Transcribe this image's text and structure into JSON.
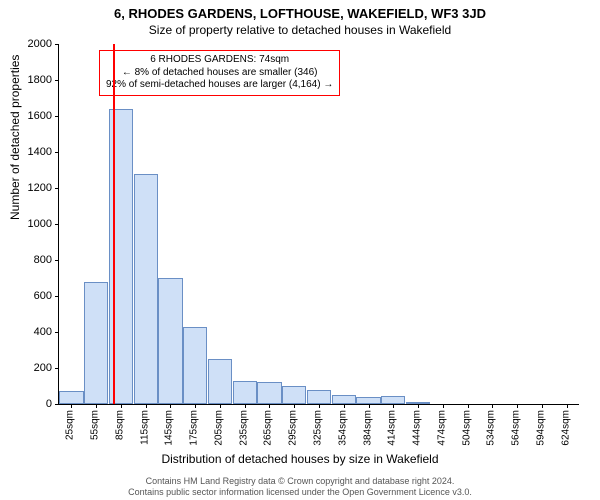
{
  "title": "6, RHODES GARDENS, LOFTHOUSE, WAKEFIELD, WF3 3JD",
  "subtitle": "Size of property relative to detached houses in Wakefield",
  "chart": {
    "type": "histogram",
    "ylabel": "Number of detached properties",
    "xlabel": "Distribution of detached houses by size in Wakefield",
    "ylim": [
      0,
      2000
    ],
    "ytick_step": 200,
    "bar_fill": "#cfe0f7",
    "bar_border": "#6a8fc5",
    "background": "#ffffff",
    "marker_color": "#ff0000",
    "marker_x_index": 1.7,
    "categories": [
      "25sqm",
      "55sqm",
      "85sqm",
      "115sqm",
      "145sqm",
      "175sqm",
      "205sqm",
      "235sqm",
      "265sqm",
      "295sqm",
      "325sqm",
      "354sqm",
      "384sqm",
      "414sqm",
      "444sqm",
      "474sqm",
      "504sqm",
      "534sqm",
      "564sqm",
      "594sqm",
      "624sqm"
    ],
    "values": [
      70,
      680,
      1640,
      1280,
      700,
      430,
      250,
      130,
      120,
      100,
      80,
      50,
      40,
      45,
      10,
      0,
      0,
      0,
      0,
      0,
      0
    ],
    "annotation": {
      "line1": "6 RHODES GARDENS: 74sqm",
      "line2": "← 8% of detached houses are smaller (346)",
      "line3": "92% of semi-detached houses are larger (4,164) →"
    }
  },
  "footer": {
    "line1": "Contains HM Land Registry data © Crown copyright and database right 2024.",
    "line2": "Contains public sector information licensed under the Open Government Licence v3.0."
  }
}
